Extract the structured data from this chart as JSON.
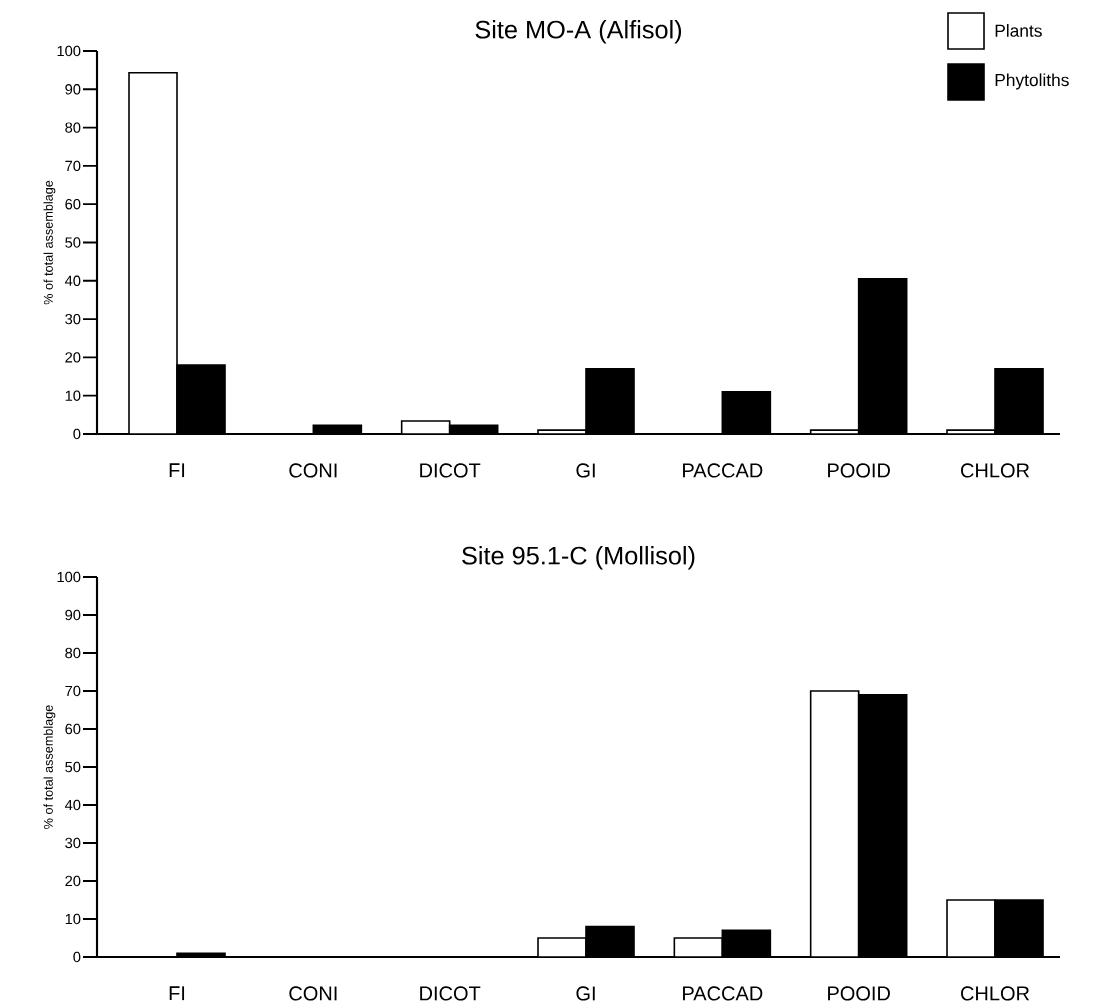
{
  "chart_data": [
    {
      "type": "bar",
      "title": "Site MO-A (Alfisol)",
      "ylabel": "% of total assemblage",
      "categories": [
        "FI",
        "CONI",
        "DICOT",
        "GI",
        "PACCAD",
        "POOID",
        "CHLOR"
      ],
      "series": [
        {
          "name": "Plants",
          "color": "#ffffff",
          "values": [
            94.3,
            null,
            3.4,
            1,
            null,
            1,
            1
          ]
        },
        {
          "name": "Phytoliths",
          "color": "#000000",
          "values": [
            18,
            2.3,
            2.3,
            17,
            11,
            40.5,
            17
          ]
        }
      ],
      "ylim": [
        0,
        100
      ],
      "yticks": [
        0,
        10,
        20,
        30,
        40,
        50,
        60,
        70,
        80,
        90,
        100
      ],
      "legend": "top right"
    },
    {
      "type": "bar",
      "title": "Site 95.1-C (Mollisol)",
      "ylabel": "% of total assemblage",
      "categories": [
        "FI",
        "CONI",
        "DICOT",
        "GI",
        "PACCAD",
        "POOID",
        "CHLOR"
      ],
      "series": [
        {
          "color": "#ffffff",
          "values": [
            null,
            null,
            null,
            5,
            5,
            70,
            15
          ]
        },
        {
          "color": "#000000",
          "values": [
            1,
            null,
            null,
            8,
            7,
            69,
            15
          ]
        }
      ],
      "ylim": [
        0,
        100
      ],
      "yticks": [
        0,
        10,
        20,
        30,
        40,
        50,
        60,
        70,
        80,
        90,
        100
      ]
    }
  ]
}
